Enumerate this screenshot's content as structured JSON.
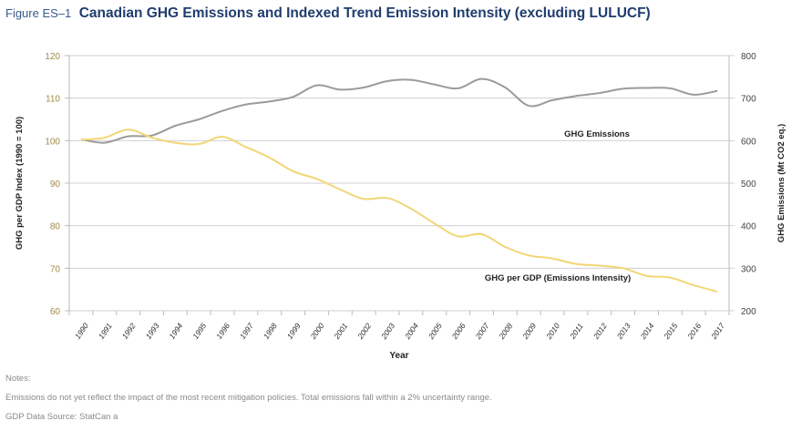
{
  "figure_label": "Figure ES–1",
  "title": "Canadian GHG Emissions and Indexed Trend Emission Intensity (excluding LULUCF)",
  "notes": {
    "heading": "Notes:",
    "line1": "Emissions do not yet reflect the impact of the most recent mitigation policies. Total emissions fall within a 2% uncertainty range.",
    "line2": "GDP Data Source: StatCan a"
  },
  "chart_data": {
    "type": "line",
    "title": "Canadian GHG Emissions and Indexed Trend Emission Intensity (excluding LULUCF)",
    "xlabel": "Year",
    "ylabel_left": "GHG per GDP Index (1990 = 100)",
    "ylabel_right": "GHG Emissions (Mt CO2 eq.)",
    "ylim_left": [
      60,
      120
    ],
    "yticks_left": [
      60,
      70,
      80,
      90,
      100,
      110,
      120
    ],
    "ylim_right": [
      200,
      800
    ],
    "yticks_right": [
      200,
      300,
      400,
      500,
      600,
      700,
      800
    ],
    "grid": true,
    "categories": [
      "1990",
      "1991",
      "1992",
      "1993",
      "1994",
      "1995",
      "1996",
      "1997",
      "1998",
      "1999",
      "2000",
      "2001",
      "2002",
      "2003",
      "2004",
      "2005",
      "2006",
      "2007",
      "2008",
      "2009",
      "2010",
      "2011",
      "2012",
      "2013",
      "2014",
      "2015",
      "2016",
      "2017"
    ],
    "series": [
      {
        "name": "GHG Emissions",
        "axis": "right",
        "color": "#9b9b9b",
        "values": [
          603,
          595,
          610,
          612,
          635,
          650,
          670,
          685,
          692,
          703,
          730,
          720,
          725,
          740,
          743,
          732,
          723,
          745,
          725,
          682,
          695,
          705,
          712,
          722,
          724,
          723,
          708,
          717
        ]
      },
      {
        "name": "GHG per GDP (Emissions Intensity)",
        "axis": "left",
        "color": "#f2d675",
        "values": [
          100.2,
          100.7,
          102.6,
          100.7,
          99.5,
          99.2,
          100.9,
          98.5,
          96.0,
          92.8,
          91.0,
          88.5,
          86.3,
          86.5,
          84.0,
          80.5,
          77.5,
          78.0,
          75.0,
          73.0,
          72.3,
          71.0,
          70.6,
          70.0,
          68.2,
          67.8,
          66.0,
          64.5
        ]
      }
    ],
    "colors": {
      "axis_tick_left": "#a08a4a",
      "axis_tick_right": "#444444",
      "gridline": "#cfcfd6"
    }
  }
}
